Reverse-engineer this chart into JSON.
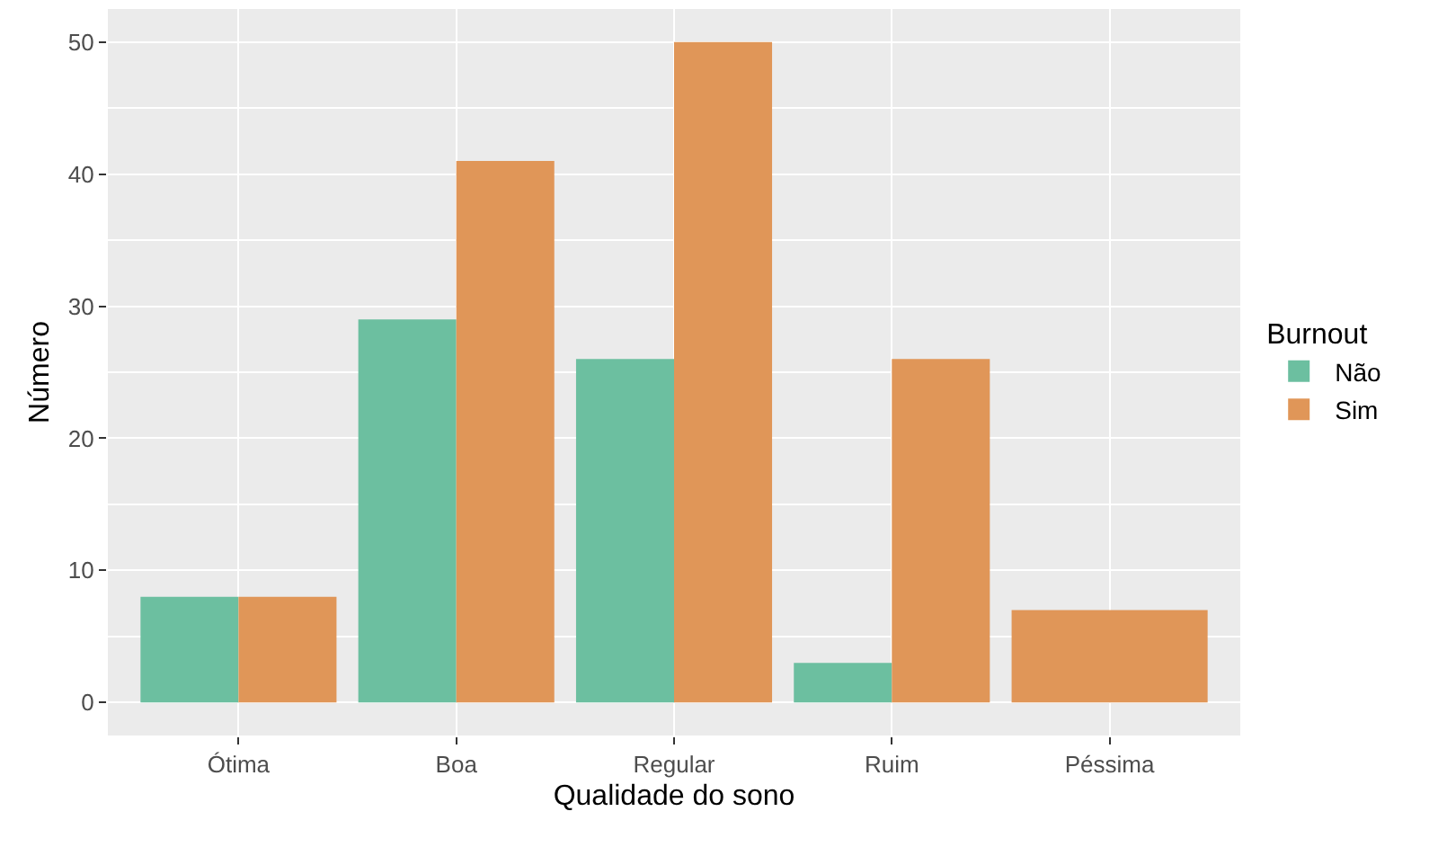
{
  "chart_data": {
    "type": "bar",
    "xlabel": "Qualidade do sono",
    "ylabel": "Número",
    "legend_title": "Burnout",
    "categories": [
      "Ótima",
      "Boa",
      "Regular",
      "Ruim",
      "Péssima"
    ],
    "series": [
      {
        "name": "Não",
        "color": "#6cbfa0",
        "values": [
          8,
          29,
          26,
          3,
          null
        ]
      },
      {
        "name": "Sim",
        "color": "#e09658",
        "values": [
          8,
          41,
          50,
          26,
          7
        ]
      }
    ],
    "ylim": [
      -2.5,
      52.5
    ],
    "yticks": [
      0,
      10,
      20,
      30,
      40,
      50
    ],
    "grid": true,
    "legend": "right"
  }
}
